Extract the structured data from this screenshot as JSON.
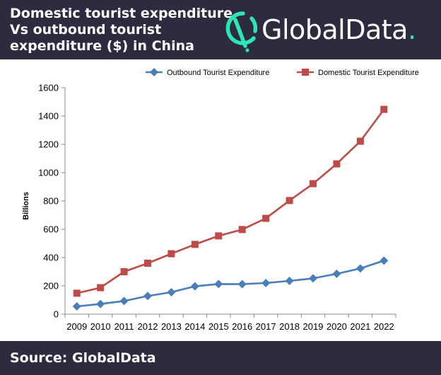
{
  "header": {
    "title_lines": [
      "Domestic tourist expenditure",
      "Vs outbound tourist",
      "expenditure ($) in China"
    ],
    "logo_text": "GlobalData",
    "logo_dot": ".",
    "colors": {
      "background": "#2d2b3f",
      "accent": "#2ee6b4",
      "text": "#ffffff"
    }
  },
  "footer": {
    "source": "Source: GlobalData"
  },
  "chart_data": {
    "type": "line",
    "title": "",
    "xlabel": "",
    "ylabel": "Billions",
    "x": [
      "2009",
      "2010",
      "2011",
      "2012",
      "2013",
      "2014",
      "2015",
      "2016",
      "2017",
      "2018",
      "2019",
      "2020",
      "2021",
      "2022"
    ],
    "ylim": [
      0,
      1600
    ],
    "yticks": [
      0,
      200,
      400,
      600,
      800,
      1000,
      1200,
      1400,
      1600
    ],
    "grid": false,
    "legend_position": "top",
    "series": [
      {
        "name": "Outbound Tourist Expenditure",
        "color": "#4a7ebb",
        "marker": "diamond",
        "values": [
          55,
          72,
          93,
          128,
          155,
          197,
          213,
          212,
          220,
          235,
          253,
          285,
          323,
          378
        ]
      },
      {
        "name": "Domestic Tourist Expenditure",
        "color": "#be4b48",
        "marker": "square",
        "values": [
          148,
          187,
          300,
          360,
          427,
          493,
          553,
          598,
          677,
          803,
          922,
          1062,
          1222,
          1447
        ]
      }
    ]
  }
}
